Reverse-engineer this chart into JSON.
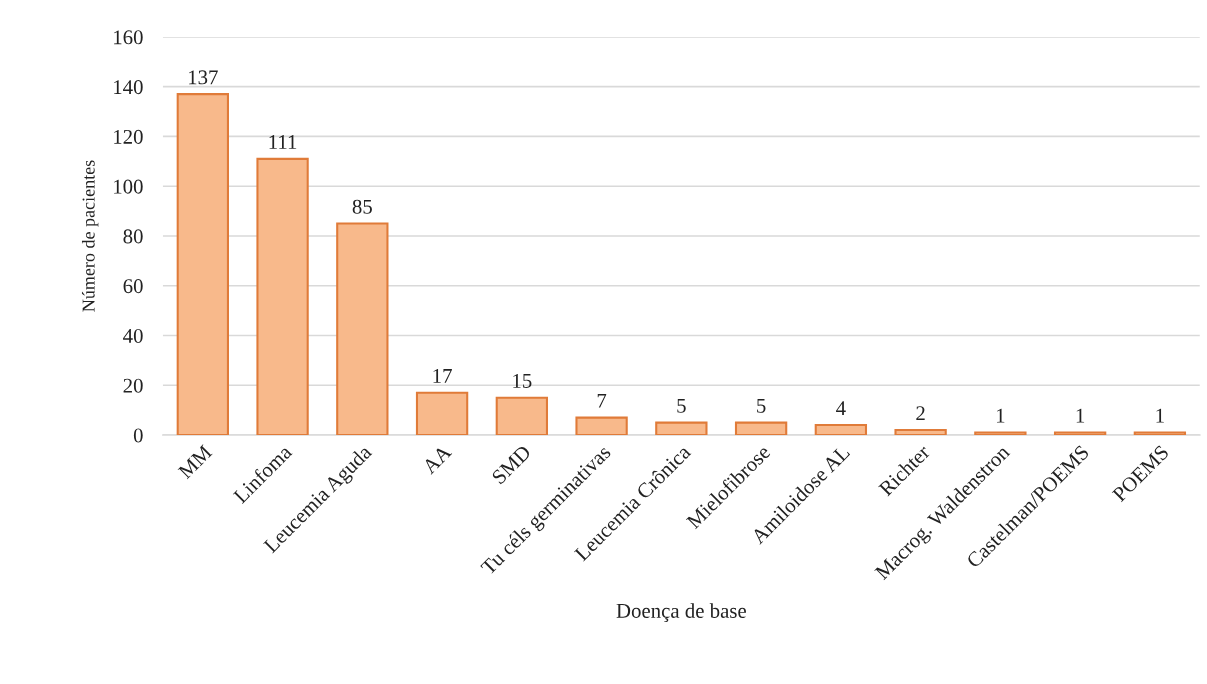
{
  "chart_data": {
    "type": "bar",
    "categories": [
      "MM",
      "Linfoma",
      "Leucemia Aguda",
      "AA",
      "SMD",
      "Tu céls germinativas",
      "Leucemia Crônica",
      "Mielofibrose",
      "Amiloidose AL",
      "Richter",
      "Macrog. Waldenstron",
      "Castelman/POEMS",
      "POEMS"
    ],
    "values": [
      137,
      111,
      85,
      17,
      15,
      7,
      5,
      5,
      4,
      2,
      1,
      1,
      1
    ],
    "color": "#f8b98b",
    "xlabel": "Doença de base",
    "ylabel": "Número de pacientes",
    "ylim": [
      0,
      160
    ],
    "yticks": [
      0,
      20,
      40,
      60,
      80,
      100,
      120,
      140,
      160
    ],
    "grid": "y",
    "data_labels": true,
    "legend": false
  }
}
